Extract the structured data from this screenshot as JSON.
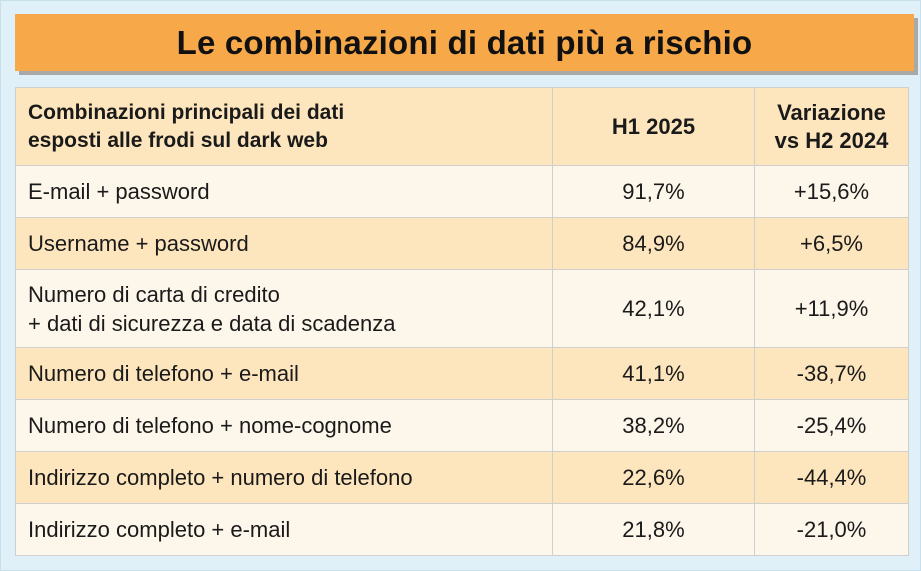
{
  "title": "Le combinazioni di dati più a rischio",
  "colors": {
    "title_bg": "#f7a94a",
    "header_bg": "#fde6bd",
    "row_light": "#fdf6ea",
    "row_dark": "#fde6bd",
    "frame_bg": "#dff0f8"
  },
  "chart_data": {
    "type": "table",
    "title": "Le combinazioni di dati più a rischio",
    "columns": [
      "Combinazioni principali dei dati esposti alle frodi sul dark web",
      "H1 2025",
      "Variazione vs H2 2024"
    ],
    "header": {
      "col1_line1": "Combinazioni principali dei dati",
      "col1_line2": "esposti alle frodi sul dark web",
      "col2": "H1 2025",
      "col3_line1": "Variazione",
      "col3_line2": "vs H2 2024"
    },
    "rows": [
      {
        "line1": "E-mail + password",
        "line2": "",
        "h1_2025": "91,7%",
        "variation": "+15,6%"
      },
      {
        "line1": "Username + password",
        "line2": "",
        "h1_2025": "84,9%",
        "variation": "+6,5%"
      },
      {
        "line1": "Numero di carta di credito",
        "line2": "+ dati di sicurezza e data di scadenza",
        "h1_2025": "42,1%",
        "variation": "+11,9%"
      },
      {
        "line1": "Numero di telefono + e-mail",
        "line2": "",
        "h1_2025": "41,1%",
        "variation": "-38,7%"
      },
      {
        "line1": "Numero di telefono + nome-cognome",
        "line2": "",
        "h1_2025": "38,2%",
        "variation": "-25,4%"
      },
      {
        "line1": "Indirizzo completo + numero di telefono",
        "line2": "",
        "h1_2025": "22,6%",
        "variation": "-44,4%"
      },
      {
        "line1": "Indirizzo completo + e-mail",
        "line2": "",
        "h1_2025": "21,8%",
        "variation": "-21,0%"
      }
    ],
    "values": [
      91.7,
      84.9,
      42.1,
      41.1,
      38.2,
      22.6,
      21.8
    ],
    "variations": [
      15.6,
      6.5,
      11.9,
      -38.7,
      -25.4,
      -44.4,
      -21.0
    ]
  }
}
